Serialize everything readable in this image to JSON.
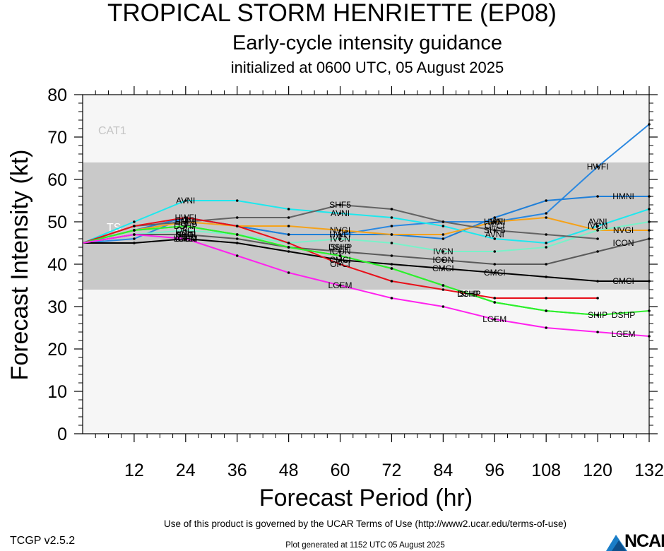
{
  "header": {
    "title": "TROPICAL STORM HENRIETTE (EP08)",
    "subtitle": "Early-cycle intensity guidance",
    "init": "initialized at 0600 UTC, 05 August 2025"
  },
  "footer": {
    "terms": "Use of this product is governed by the UCAR Terms of Use (http://www2.ucar.edu/terms-of-use)",
    "version": "TCGP v2.5.2",
    "generated": "Plot generated at 1152 UTC   05 August 2025",
    "brand": "NCAR",
    "brand_icon": "ncar-logo-icon"
  },
  "chart_data": {
    "type": "line",
    "title": "TROPICAL STORM HENRIETTE (EP08)",
    "xlabel": "Forecast Period (hr)",
    "ylabel": "Forecast Intensity (kt)",
    "xlim": [
      0,
      132
    ],
    "ylim": [
      0,
      80
    ],
    "xticks": [
      12,
      24,
      36,
      48,
      60,
      72,
      84,
      96,
      108,
      120,
      132
    ],
    "yticks": [
      0,
      10,
      20,
      30,
      40,
      50,
      60,
      70,
      80
    ],
    "bands": [
      {
        "label": "CAT1",
        "from": 64,
        "to": 80,
        "color": "#f6f6f6"
      },
      {
        "label": "TS",
        "from": 34,
        "to": 64,
        "color": "#c9c9c9"
      },
      {
        "label": "",
        "from": 0,
        "to": 34,
        "color": "#f6f6f6"
      }
    ],
    "series": [
      {
        "name": "HWFI",
        "color": "#2b88e0",
        "x": [
          0,
          12,
          24,
          36,
          48,
          60,
          72,
          84,
          96,
          108,
          120,
          132
        ],
        "values": [
          45,
          46,
          51,
          49,
          47,
          47,
          49,
          50,
          50,
          52,
          63,
          73
        ],
        "label_at": 120
      },
      {
        "name": "HMNI",
        "color": "#1f7fd8",
        "x": [
          0,
          12,
          24,
          36,
          48,
          60,
          72,
          84,
          96,
          108,
          120,
          132
        ],
        "values": [
          45,
          48,
          51,
          49,
          47,
          47,
          47,
          46,
          51,
          55,
          56,
          56
        ],
        "label_at": 126
      },
      {
        "name": "AVNI",
        "color": "#1de8ee",
        "x": [
          0,
          12,
          24,
          36,
          48,
          60,
          72,
          84,
          96,
          108,
          120,
          132
        ],
        "values": [
          45,
          50,
          55,
          55,
          53,
          52,
          51,
          49,
          46,
          45,
          49,
          53
        ],
        "label_at": 24
      },
      {
        "name": "NVGI",
        "color": "#f5a21a",
        "x": [
          0,
          12,
          24,
          36,
          48,
          60,
          72,
          84,
          96,
          108,
          120,
          132
        ],
        "values": [
          45,
          48,
          50,
          49,
          49,
          48,
          47,
          47,
          50,
          51,
          48,
          48
        ],
        "label_at": 126
      },
      {
        "name": "IVCN",
        "color": "#78f2c9",
        "x": [
          0,
          12,
          24,
          36,
          48,
          60,
          72,
          84,
          96,
          108,
          120,
          132
        ],
        "values": [
          45,
          47,
          48,
          47,
          45,
          46,
          45,
          43,
          43,
          44,
          48,
          50
        ],
        "label_at": 84
      },
      {
        "name": "ICON",
        "color": "#5a5a5a",
        "x": [
          0,
          12,
          24,
          36,
          48,
          60,
          72,
          84,
          96,
          108,
          120,
          132
        ],
        "values": [
          45,
          47,
          47,
          46,
          44,
          43,
          42,
          41,
          40,
          40,
          43,
          46
        ],
        "label_at": 84
      },
      {
        "name": "SHF5",
        "color": "#636363",
        "x": [
          0,
          12,
          24,
          36,
          48,
          60,
          72,
          84,
          96,
          108,
          120
        ],
        "values": [
          45,
          49,
          50,
          51,
          51,
          54,
          53,
          50,
          48,
          47,
          46
        ],
        "label_at": 60
      },
      {
        "name": "CMCI",
        "color": "#000000",
        "x": [
          0,
          12,
          24,
          36,
          48,
          60,
          72,
          84,
          96,
          108,
          120,
          132
        ],
        "values": [
          45,
          45,
          46,
          45,
          43,
          41,
          40,
          39,
          38,
          37,
          36,
          36
        ],
        "label_at": 84
      },
      {
        "name": "OFCI",
        "color": "#e8101a",
        "x": [
          0,
          12,
          24,
          36,
          48,
          60,
          72,
          84,
          96,
          108,
          120
        ],
        "values": [
          45,
          49,
          51,
          49,
          45,
          40,
          36,
          34,
          32,
          32,
          32
        ],
        "label_at": 60
      },
      {
        "name": "DSHP",
        "color": "#2cf02c",
        "x": [
          0,
          12,
          24,
          36,
          48,
          60,
          72,
          84,
          96,
          108,
          120,
          132
        ],
        "values": [
          45,
          48,
          49,
          47,
          44,
          42,
          39,
          35,
          31,
          29,
          28,
          29
        ],
        "label_at": 90
      },
      {
        "name": "SHIP",
        "color": "#2cf02c",
        "x": [
          0,
          12,
          24,
          36,
          48,
          60,
          72,
          84,
          96,
          108,
          120
        ],
        "values": [
          45,
          48,
          49,
          47,
          44,
          42,
          39,
          35,
          31,
          29,
          28
        ],
        "label_at": 120
      },
      {
        "name": "LGEM",
        "color": "#ff22ee",
        "x": [
          0,
          12,
          24,
          36,
          48,
          60,
          72,
          84,
          96,
          108,
          120,
          132
        ],
        "values": [
          45,
          47,
          46,
          42,
          38,
          35,
          32,
          30,
          27,
          25,
          24,
          23
        ],
        "label_at": 60
      }
    ],
    "extra_labels": [
      {
        "text": "LGEM",
        "x": 24,
        "y": 46
      },
      {
        "text": "LGEM",
        "x": 96,
        "y": 27
      },
      {
        "text": "LGEM",
        "x": 126,
        "y": 23.5
      },
      {
        "text": "AVNI",
        "x": 60,
        "y": 52
      },
      {
        "text": "AVNI",
        "x": 96,
        "y": 47
      },
      {
        "text": "AVNI",
        "x": 120,
        "y": 50
      },
      {
        "text": "IVCN",
        "x": 60,
        "y": 46
      },
      {
        "text": "IVCN",
        "x": 120,
        "y": 49
      },
      {
        "text": "ICON",
        "x": 60,
        "y": 43
      },
      {
        "text": "ICON",
        "x": 126,
        "y": 45
      },
      {
        "text": "CMCI",
        "x": 60,
        "y": 41
      },
      {
        "text": "CMCI",
        "x": 96,
        "y": 38
      },
      {
        "text": "CMCI",
        "x": 126,
        "y": 36
      },
      {
        "text": "NVGI",
        "x": 60,
        "y": 48
      },
      {
        "text": "HWFI",
        "x": 24,
        "y": 51
      },
      {
        "text": "HWFI",
        "x": 60,
        "y": 47
      },
      {
        "text": "HWFI",
        "x": 96,
        "y": 50
      },
      {
        "text": "HMNI",
        "x": 24,
        "y": 50
      },
      {
        "text": "HMNI",
        "x": 96,
        "y": 50
      },
      {
        "text": "SHF5",
        "x": 24,
        "y": 50
      },
      {
        "text": "SHF5",
        "x": 96,
        "y": 48
      },
      {
        "text": "OFCI",
        "x": 24,
        "y": 48
      },
      {
        "text": "OFCI",
        "x": 96,
        "y": 49
      },
      {
        "text": "DSHP",
        "x": 24,
        "y": 49
      },
      {
        "text": "DSHP",
        "x": 60,
        "y": 44
      },
      {
        "text": "DSHP",
        "x": 90,
        "y": 33
      },
      {
        "text": "DSHP",
        "x": 126,
        "y": 28
      },
      {
        "text": "SHIP",
        "x": 24,
        "y": 47
      },
      {
        "text": "SHIP",
        "x": 60,
        "y": 44
      },
      {
        "text": "SHIP",
        "x": 90,
        "y": 33
      },
      {
        "text": "NVGI",
        "x": 24,
        "y": 47
      },
      {
        "text": "IVCN",
        "x": 24,
        "y": 47
      },
      {
        "text": "ICON",
        "x": 24,
        "y": 46
      },
      {
        "text": "CMCI",
        "x": 24,
        "y": 46
      }
    ]
  }
}
